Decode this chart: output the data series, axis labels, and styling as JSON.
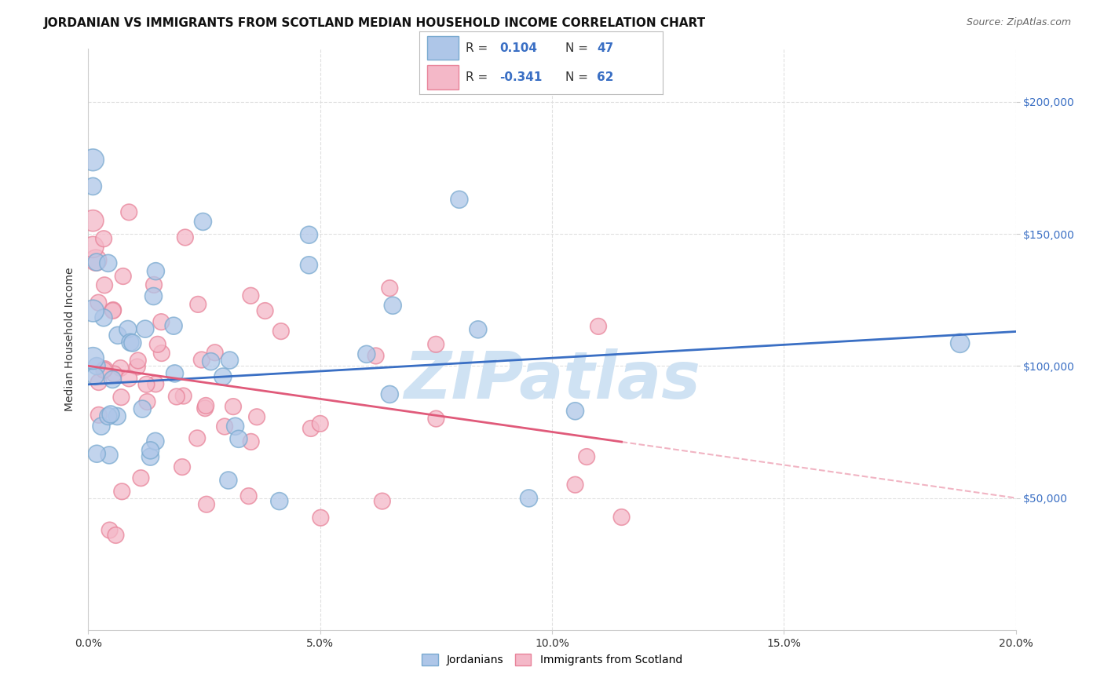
{
  "title": "JORDANIAN VS IMMIGRANTS FROM SCOTLAND MEDIAN HOUSEHOLD INCOME CORRELATION CHART",
  "source": "Source: ZipAtlas.com",
  "ylabel": "Median Household Income",
  "xlim": [
    0.0,
    0.2
  ],
  "ylim": [
    0,
    220000
  ],
  "xtick_labels": [
    "0.0%",
    "5.0%",
    "10.0%",
    "15.0%",
    "20.0%"
  ],
  "xtick_vals": [
    0.0,
    0.05,
    0.1,
    0.15,
    0.2
  ],
  "ytick_labels": [
    "$50,000",
    "$100,000",
    "$150,000",
    "$200,000"
  ],
  "ytick_vals": [
    50000,
    100000,
    150000,
    200000
  ],
  "blue_line_color": "#3a6fc4",
  "pink_line_color": "#e05a7a",
  "blue_scatter_face": "#aec6e8",
  "pink_scatter_face": "#f4b8c8",
  "blue_scatter_edge": "#7aaad0",
  "pink_scatter_edge": "#e8849a",
  "grid_color": "#e0e0e0",
  "background_color": "#ffffff",
  "watermark_color": "#cfe2f3",
  "title_fontsize": 11,
  "axis_label_fontsize": 10,
  "tick_fontsize": 10,
  "legend_blue_text": "#3a6fc4",
  "legend_pink_text": "#e05a7a",
  "legend_label_color": "#333333"
}
